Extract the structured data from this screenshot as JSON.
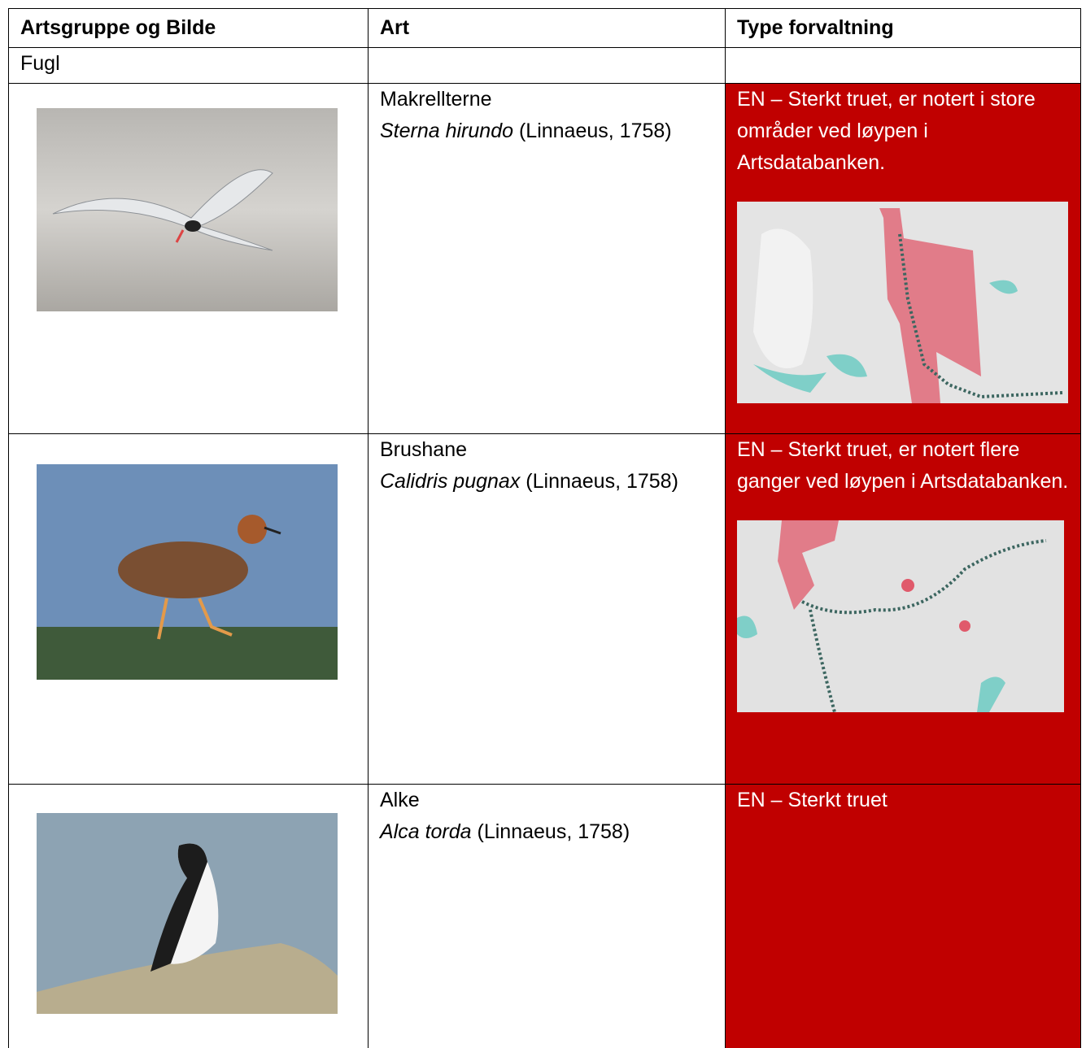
{
  "header": {
    "columns": [
      "Artsgruppe og Bilde",
      "Art",
      "Type forvaltning"
    ]
  },
  "group": "Fugl",
  "species": [
    {
      "name": "Makrellterne",
      "latin": "Sterna hirundo",
      "author": "(Linnaeus, 1758)",
      "status": "EN – Sterkt truet, er notert i store områder ved løypen i Artsdatabanken."
    },
    {
      "name": "Brushane",
      "latin": "Calidris pugnax",
      "author": "(Linnaeus, 1758)",
      "status": "EN – Sterkt truet, er notert flere ganger ved løypen i Artsdatabanken."
    },
    {
      "name": "Alke",
      "latin": "Alca torda",
      "author": "(Linnaeus, 1758)",
      "status": "EN – Sterkt truet"
    }
  ]
}
